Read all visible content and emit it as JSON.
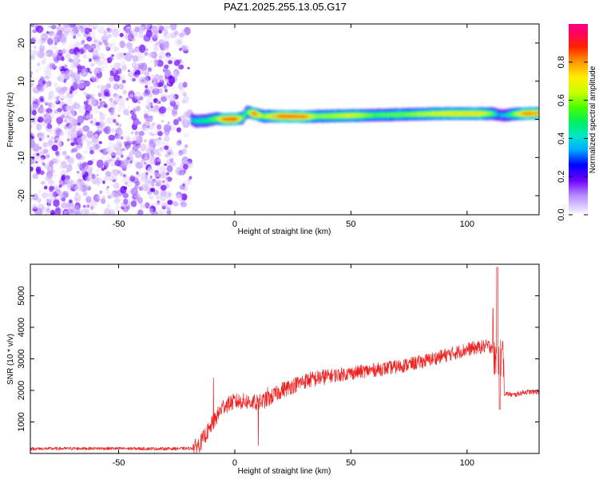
{
  "title": "PAZ1.2025.255.13.05.G17",
  "chart_data": [
    {
      "type": "heatmap",
      "name": "spectrogram",
      "xlabel": "Height of straight line (km)",
      "ylabel": "Frequency (Hz)",
      "xlim": [
        -88,
        131
      ],
      "ylim": [
        -25,
        25
      ],
      "xticks": [
        -50,
        0,
        50,
        100
      ],
      "xtick_labels": [
        "-50",
        "0",
        "50",
        "100"
      ],
      "yticks": [
        -20,
        -10,
        0,
        10,
        20
      ],
      "ytick_labels": [
        "-20",
        "-10",
        "0",
        "10",
        "20"
      ],
      "noise_region_x": [
        -88,
        -19
      ],
      "signal_ridge": [
        {
          "x": -19,
          "f": 0.0,
          "a": 0.35
        },
        {
          "x": -17,
          "f": -0.5,
          "a": 0.45
        },
        {
          "x": -12,
          "f": -0.3,
          "a": 0.5
        },
        {
          "x": -8,
          "f": 0.2,
          "a": 0.6
        },
        {
          "x": -5,
          "f": 0.0,
          "a": 0.85
        },
        {
          "x": 0,
          "f": 0.1,
          "a": 0.9
        },
        {
          "x": 3,
          "f": 0.3,
          "a": 0.6
        },
        {
          "x": 5,
          "f": 2.0,
          "a": 0.5
        },
        {
          "x": 8,
          "f": 1.5,
          "a": 0.9
        },
        {
          "x": 12,
          "f": 0.8,
          "a": 0.6
        },
        {
          "x": 20,
          "f": 0.8,
          "a": 0.88
        },
        {
          "x": 30,
          "f": 0.7,
          "a": 0.85
        },
        {
          "x": 35,
          "f": 0.8,
          "a": 0.6
        },
        {
          "x": 50,
          "f": 1.0,
          "a": 0.7
        },
        {
          "x": 60,
          "f": 1.1,
          "a": 0.55
        },
        {
          "x": 75,
          "f": 1.3,
          "a": 0.6
        },
        {
          "x": 90,
          "f": 1.5,
          "a": 0.72
        },
        {
          "x": 105,
          "f": 1.5,
          "a": 0.75
        },
        {
          "x": 111,
          "f": 1.5,
          "a": 0.55
        },
        {
          "x": 113,
          "f": 1.2,
          "a": 0.35
        },
        {
          "x": 116,
          "f": 1.0,
          "a": 0.4
        },
        {
          "x": 120,
          "f": 1.4,
          "a": 0.6
        },
        {
          "x": 125,
          "f": 1.5,
          "a": 0.85
        },
        {
          "x": 131,
          "f": 1.6,
          "a": 0.8
        }
      ],
      "colorbar": {
        "label": "Normalized spectral amplitude",
        "range": [
          0.0,
          1.0
        ],
        "ticks": [
          0.0,
          0.2,
          0.4,
          0.6,
          0.8
        ],
        "tick_labels": [
          "0.0",
          "0.2",
          "0.4",
          "0.6",
          "0.8"
        ]
      }
    },
    {
      "type": "line",
      "name": "snr",
      "xlabel": "Height of straight line (km)",
      "ylabel": "SNR (10 * v/v)",
      "xlim": [
        -88,
        131
      ],
      "ylim": [
        0,
        6000
      ],
      "xticks": [
        -50,
        0,
        50,
        100
      ],
      "xtick_labels": [
        "-50",
        "0",
        "50",
        "100"
      ],
      "yticks": [
        1000,
        2000,
        3000,
        4000,
        5000
      ],
      "ytick_labels": [
        "1000",
        "2000",
        "3000",
        "4000",
        "5000"
      ],
      "color": "#ee2222",
      "trend": {
        "x": [
          -88,
          -60,
          -30,
          -18,
          -15,
          -10,
          -5,
          0,
          5,
          10,
          15,
          20,
          25,
          30,
          40,
          50,
          60,
          70,
          80,
          90,
          100,
          108,
          110,
          111
        ],
        "y": [
          150,
          160,
          150,
          160,
          300,
          900,
          1500,
          1650,
          1650,
          1600,
          1750,
          2000,
          2150,
          2300,
          2450,
          2550,
          2650,
          2750,
          2900,
          3100,
          3300,
          3400,
          3400,
          3400
        ]
      },
      "spikes": [
        {
          "x": -9,
          "y": 2400
        },
        {
          "x": -11,
          "y": 1200
        },
        {
          "x": 9,
          "y": 2200
        },
        {
          "x": 10,
          "y": 250
        },
        {
          "x": 14,
          "y": 2100
        },
        {
          "x": 111,
          "y": 4600
        },
        {
          "x": 113,
          "y": 5900
        },
        {
          "x": 114,
          "y": 1400
        },
        {
          "x": 115,
          "y": 3300
        }
      ],
      "tail": {
        "x": [
          117,
          120,
          125,
          131
        ],
        "y": [
          1900,
          1850,
          1950,
          1950
        ]
      }
    }
  ]
}
